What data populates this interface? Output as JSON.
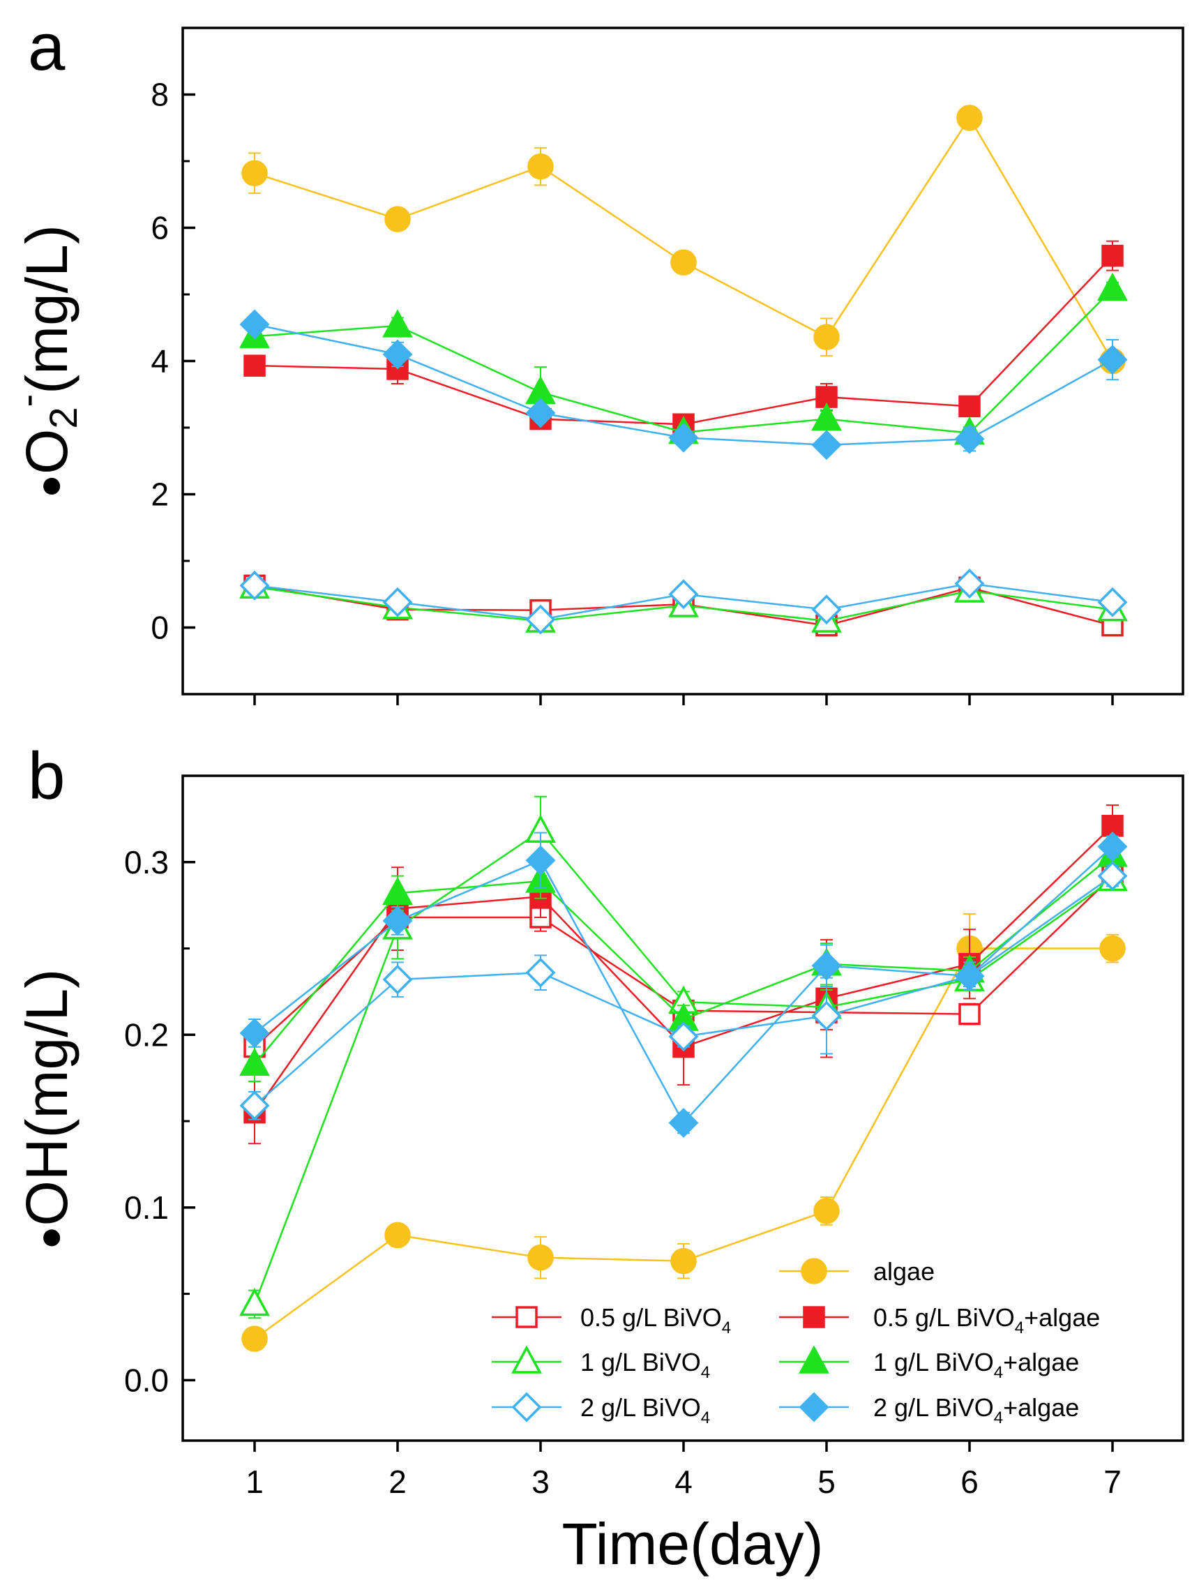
{
  "chart_data": [
    {
      "panel": "a",
      "type": "line",
      "ylabel": "•O2⁻(mg/L)",
      "ylabel_parts": {
        "main": "O",
        "sub": "2",
        "sup": "-",
        "units": "(mg/L)"
      },
      "xlim": [
        0.5,
        7.5
      ],
      "ylim": [
        -1,
        9
      ],
      "yticks": [
        0,
        2,
        4,
        6,
        8
      ],
      "xticks": [
        1,
        2,
        3,
        4,
        5,
        6,
        7
      ],
      "x": [
        1,
        2,
        3,
        4,
        5,
        6,
        7
      ],
      "series": [
        {
          "name": "algae",
          "color": "#f9c11c",
          "marker": "circle",
          "filled": true,
          "values": [
            6.82,
            6.13,
            6.92,
            5.48,
            4.36,
            7.65,
            4.0
          ],
          "errors": [
            0.3,
            0.08,
            0.28,
            0.05,
            0.28,
            0.08,
            0.1
          ]
        },
        {
          "name": "0.5 g/L BiVO4",
          "color": "#ec1c24",
          "marker": "square",
          "filled": false,
          "values": [
            0.63,
            0.27,
            0.26,
            0.35,
            0.03,
            0.6,
            0.03
          ],
          "errors": [
            0.05,
            0.05,
            0.04,
            0.05,
            0.04,
            0.05,
            0.04
          ]
        },
        {
          "name": "0.5 g/L BiVO4+algae",
          "color": "#ec1c24",
          "marker": "square",
          "filled": true,
          "values": [
            3.93,
            3.88,
            3.13,
            3.05,
            3.46,
            3.32,
            5.58
          ],
          "errors": [
            0.06,
            0.22,
            0.12,
            0.1,
            0.2,
            0.08,
            0.22
          ]
        },
        {
          "name": "1 g/L BiVO4",
          "color": "#1fe21f",
          "marker": "triangle",
          "filled": false,
          "values": [
            0.61,
            0.3,
            0.1,
            0.33,
            0.1,
            0.55,
            0.27
          ],
          "errors": [
            0.05,
            0.05,
            0.05,
            0.05,
            0.05,
            0.05,
            0.05
          ]
        },
        {
          "name": "1 g/L BiVO4+algae",
          "color": "#1fe21f",
          "marker": "triangle",
          "filled": true,
          "values": [
            4.37,
            4.53,
            3.53,
            2.93,
            3.13,
            2.92,
            5.08
          ],
          "errors": [
            0.1,
            0.12,
            0.38,
            0.08,
            0.12,
            0.08,
            0.1
          ]
        },
        {
          "name": "2 g/L BiVO4",
          "color": "#3fb0f0",
          "marker": "diamond",
          "filled": false,
          "values": [
            0.63,
            0.38,
            0.12,
            0.5,
            0.27,
            0.66,
            0.38
          ],
          "errors": [
            0.05,
            0.05,
            0.05,
            0.05,
            0.05,
            0.05,
            0.05
          ]
        },
        {
          "name": "2 g/L BiVO4+algae",
          "color": "#3fb0f0",
          "marker": "diamond",
          "filled": true,
          "values": [
            4.55,
            4.1,
            3.22,
            2.85,
            2.74,
            2.83,
            4.02
          ],
          "errors": [
            0.05,
            0.18,
            0.1,
            0.08,
            0.06,
            0.18,
            0.3
          ]
        }
      ]
    },
    {
      "panel": "b",
      "type": "line",
      "ylabel": "•OH(mg/L)",
      "xlabel": "Time(day)",
      "xlim": [
        0.5,
        7.5
      ],
      "ylim": [
        -0.035,
        0.35
      ],
      "yticks": [
        0.0,
        0.1,
        0.2,
        0.3
      ],
      "ytick_labels": [
        "0.0",
        "0.1",
        "0.2",
        "0.3"
      ],
      "xticks": [
        1,
        2,
        3,
        4,
        5,
        6,
        7
      ],
      "x": [
        1,
        2,
        3,
        4,
        5,
        6,
        7
      ],
      "series": [
        {
          "name": "algae",
          "color": "#f9c11c",
          "marker": "circle",
          "filled": true,
          "values": [
            0.024,
            0.084,
            0.071,
            0.069,
            0.098,
            0.25,
            0.25
          ],
          "errors": [
            0.004,
            0.004,
            0.012,
            0.01,
            0.008,
            0.02,
            0.008
          ]
        },
        {
          "name": "0.5 g/L BiVO4",
          "color": "#ec1c24",
          "marker": "square",
          "filled": false,
          "values": [
            0.193,
            0.268,
            0.268,
            0.214,
            0.213,
            0.212,
            0.292
          ],
          "errors": [
            0.008,
            0.01,
            0.008,
            0.006,
            0.01,
            0.006,
            0.006
          ]
        },
        {
          "name": "0.5 g/L BiVO4+algae",
          "color": "#ec1c24",
          "marker": "square",
          "filled": true,
          "values": [
            0.155,
            0.273,
            0.28,
            0.193,
            0.221,
            0.241,
            0.321
          ],
          "errors": [
            0.018,
            0.024,
            0.012,
            0.022,
            0.034,
            0.02,
            0.012
          ]
        },
        {
          "name": "1 g/L BiVO4",
          "color": "#1fe21f",
          "marker": "triangle",
          "filled": false,
          "values": [
            0.044,
            0.262,
            0.318,
            0.219,
            0.216,
            0.232,
            0.29
          ],
          "errors": [
            0.008,
            0.018,
            0.02,
            0.006,
            0.01,
            0.006,
            0.006
          ]
        },
        {
          "name": "1 g/L BiVO4+algae",
          "color": "#1fe21f",
          "marker": "triangle",
          "filled": true,
          "values": [
            0.183,
            0.282,
            0.289,
            0.209,
            0.241,
            0.237,
            0.304
          ],
          "errors": [
            0.01,
            0.01,
            0.01,
            0.008,
            0.012,
            0.008,
            0.008
          ]
        },
        {
          "name": "2 g/L BiVO4",
          "color": "#3fb0f0",
          "marker": "diamond",
          "filled": false,
          "values": [
            0.159,
            0.232,
            0.236,
            0.199,
            0.211,
            0.234,
            0.292
          ],
          "errors": [
            0.008,
            0.01,
            0.01,
            0.006,
            0.022,
            0.006,
            0.006
          ]
        },
        {
          "name": "2 g/L BiVO4+algae",
          "color": "#3fb0f0",
          "marker": "diamond",
          "filled": true,
          "values": [
            0.201,
            0.266,
            0.301,
            0.149,
            0.24,
            0.234,
            0.309
          ],
          "errors": [
            0.008,
            0.008,
            0.016,
            0.006,
            0.012,
            0.008,
            0.006
          ]
        }
      ]
    }
  ],
  "legend": [
    {
      "base": "algae",
      "sub": "",
      "tail": "",
      "series": "algae"
    },
    {
      "base": "0.5 g/L BiVO",
      "sub": "4",
      "tail": "",
      "series": "0.5 g/L BiVO4"
    },
    {
      "base": "0.5 g/L BiVO",
      "sub": "4",
      "tail": "+algae",
      "series": "0.5 g/L BiVO4+algae"
    },
    {
      "base": "1 g/L BiVO",
      "sub": "4",
      "tail": "",
      "series": "1 g/L BiVO4"
    },
    {
      "base": "1 g/L BiVO",
      "sub": "4",
      "tail": "+algae",
      "series": "1 g/L BiVO4+algae"
    },
    {
      "base": "2 g/L BiVO",
      "sub": "4",
      "tail": "",
      "series": "2 g/L BiVO4"
    },
    {
      "base": "2 g/L BiVO",
      "sub": "4",
      "tail": "+algae",
      "series": "2 g/L BiVO4+algae"
    }
  ],
  "legend_position": "bottom-right"
}
